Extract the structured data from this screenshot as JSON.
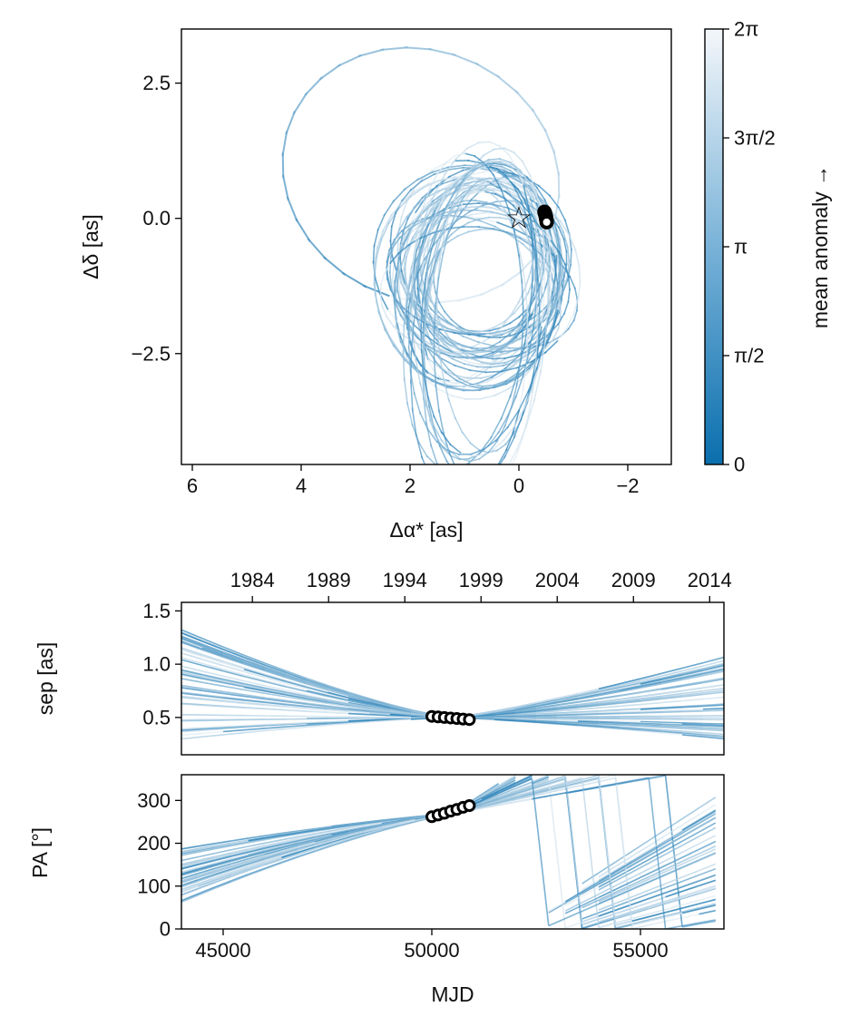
{
  "colors": {
    "dark": "#0a6fae",
    "light": "#f4f7fa",
    "marker_fill": "#ffffff",
    "marker_stroke": "#000000"
  },
  "chart_data": [
    {
      "id": "astrometry",
      "type": "line",
      "xlabel": "Δα* [as]",
      "ylabel": "Δδ [as]",
      "xlim": [
        6.2,
        -2.8
      ],
      "ylim": [
        -4.55,
        3.5
      ],
      "xticks": [
        6,
        4,
        2,
        0,
        -2
      ],
      "xtick_labels": [
        "6",
        "4",
        "2",
        "0",
        "−2"
      ],
      "yticks": [
        2.5,
        0.0,
        -2.5
      ],
      "ytick_labels": [
        "2.5",
        "0.0",
        "−2.5"
      ],
      "star": {
        "x": 0,
        "y": 0,
        "symbol": "☆"
      },
      "observations": [
        {
          "x": -0.47,
          "y": 0.12
        },
        {
          "x": -0.48,
          "y": 0.09
        },
        {
          "x": -0.49,
          "y": 0.05
        },
        {
          "x": -0.5,
          "y": 0.02
        },
        {
          "x": -0.5,
          "y": -0.01
        },
        {
          "x": -0.51,
          "y": -0.04
        },
        {
          "x": -0.51,
          "y": -0.07
        }
      ],
      "description": "Ensemble of posterior orbit draws shaded by mean anomaly"
    },
    {
      "id": "colorbar",
      "type": "heatmap",
      "label": "mean anomaly →",
      "range": [
        0,
        6.2832
      ],
      "ticks": [
        0,
        1.5708,
        3.1416,
        4.7124,
        6.2832
      ],
      "tick_labels": [
        "0",
        "π/2",
        "π",
        "3π/2",
        "2π"
      ]
    },
    {
      "id": "separation",
      "type": "line",
      "ylabel": "sep [as]",
      "xlim": [
        44000,
        57000
      ],
      "ylim": [
        0.15,
        1.58
      ],
      "yticks": [
        0.5,
        1.0,
        1.5
      ],
      "ytick_labels": [
        "0.5",
        "1.0",
        "1.5"
      ],
      "top_year_ticks": [
        1984,
        1989,
        1994,
        1999,
        2004,
        2009,
        2014
      ],
      "top_year_labels": [
        "1984",
        "1989",
        "1994",
        "1999",
        "2004",
        "2009",
        "2014"
      ],
      "observations": [
        {
          "x": 50000,
          "y": 0.51
        },
        {
          "x": 50150,
          "y": 0.505
        },
        {
          "x": 50300,
          "y": 0.5
        },
        {
          "x": 50450,
          "y": 0.495
        },
        {
          "x": 50600,
          "y": 0.49
        },
        {
          "x": 50750,
          "y": 0.485
        },
        {
          "x": 50900,
          "y": 0.48
        }
      ]
    },
    {
      "id": "position_angle",
      "type": "line",
      "xlabel": "MJD",
      "ylabel": "PA [°]",
      "xlim": [
        44000,
        57000
      ],
      "ylim": [
        0,
        360
      ],
      "xticks": [
        45000,
        50000,
        55000
      ],
      "xtick_labels": [
        "45000",
        "50000",
        "55000"
      ],
      "yticks": [
        0,
        100,
        200,
        300
      ],
      "ytick_labels": [
        "0",
        "100",
        "200",
        "300"
      ],
      "observations": [
        {
          "x": 50000,
          "y": 262
        },
        {
          "x": 50150,
          "y": 266
        },
        {
          "x": 50300,
          "y": 270
        },
        {
          "x": 50450,
          "y": 275
        },
        {
          "x": 50600,
          "y": 279
        },
        {
          "x": 50750,
          "y": 284
        },
        {
          "x": 50900,
          "y": 288
        }
      ]
    }
  ]
}
